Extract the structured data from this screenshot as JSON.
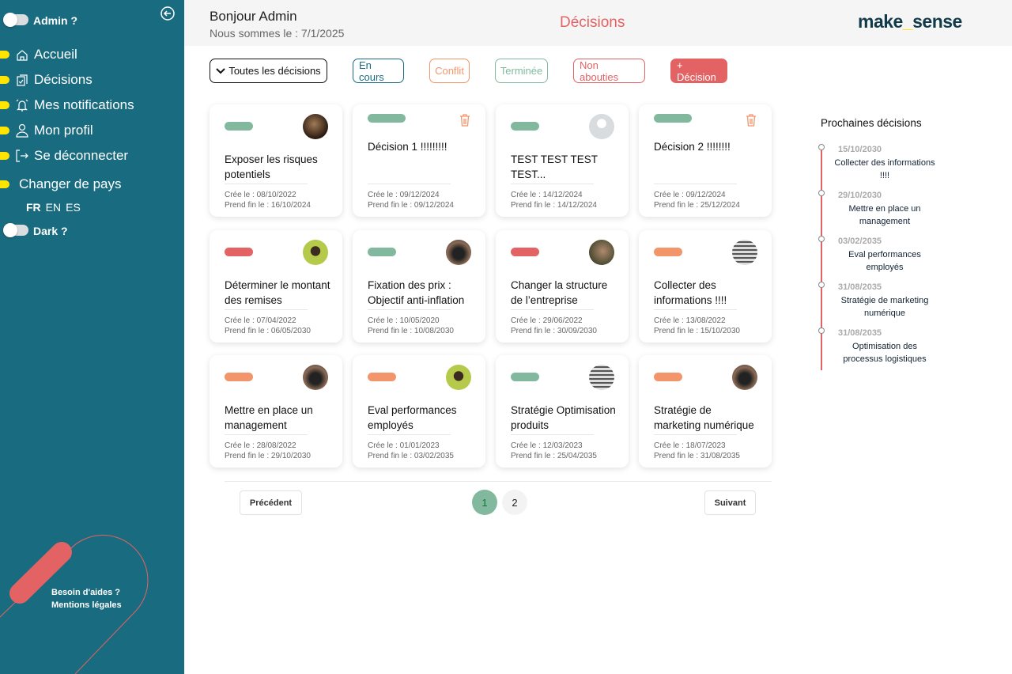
{
  "colors": {
    "sidebar": "#196b80",
    "accent_yellow": "#ffe500",
    "green": "#82b99e",
    "red": "#e36264",
    "orange": "#f2956a",
    "blue": "#196b80"
  },
  "sidebar": {
    "admin_toggle": "Admin ?",
    "items": [
      {
        "label": "Accueil",
        "icon": "home-icon"
      },
      {
        "label": "Décisions",
        "icon": "clipboard-check-icon"
      },
      {
        "label": "Mes notifications",
        "icon": "bell-icon"
      },
      {
        "label": "Mon profil",
        "icon": "user-icon"
      },
      {
        "label": "Se déconnecter",
        "icon": "logout-icon"
      }
    ],
    "country": "Changer de pays",
    "languages": [
      "FR",
      "EN",
      "ES"
    ],
    "dark_toggle": "Dark ?",
    "help": "Besoin d'aides ?",
    "legal": "Mentions légales"
  },
  "header": {
    "greeting": "Bonjour Admin",
    "date": "Nous sommes le : 7/1/2025",
    "title": "Décisions",
    "logo_a": "make",
    "logo_b": "_",
    "logo_c": "sense"
  },
  "filters": {
    "all": "Toutes les décisions",
    "ongoing": "En cours",
    "conflict": "Conflit",
    "done": "Terminée",
    "failed": "Non abouties",
    "add": "+ Décision"
  },
  "cards": [
    {
      "title": "Exposer les risques potentiels",
      "created": "Crée le : 08/10/2022",
      "end": "Prend fin le : 16/10/2024",
      "status": "green",
      "avatar": "photo"
    },
    {
      "title": "Décision 1 !!!!!!!!!",
      "created": "Crée le : 09/12/2024",
      "end": "Prend fin le : 09/12/2024",
      "status": "green",
      "avatar": "trash"
    },
    {
      "title": "TEST TEST TEST TEST...",
      "created": "Crée le : 14/12/2024",
      "end": "Prend fin le : 14/12/2024",
      "status": "green",
      "avatar": "default"
    },
    {
      "title": "Décision 2 !!!!!!!!",
      "created": "Crée le : 09/12/2024",
      "end": "Prend fin le : 25/12/2024",
      "status": "green",
      "avatar": "trash"
    },
    {
      "title": "Déterminer le montant des remises",
      "created": "Crée le : 07/04/2022",
      "end": "Prend fin le : 06/05/2030",
      "status": "red",
      "avatar": "illustration"
    },
    {
      "title": "Fixation des prix : Objectif anti-inflation",
      "created": "Crée le : 10/05/2020",
      "end": "Prend fin le : 10/08/2030",
      "status": "green",
      "avatar": "camera"
    },
    {
      "title": "Changer la structure de l’entreprise",
      "created": "Crée le : 29/06/2022",
      "end": "Prend fin le : 30/09/2030",
      "status": "red",
      "avatar": "woman"
    },
    {
      "title": "Collecter des informations !!!!",
      "created": "Crée le : 13/08/2022",
      "end": "Prend fin le : 15/10/2030",
      "status": "orange",
      "avatar": "bw"
    },
    {
      "title": "Mettre en place un management",
      "created": "Crée le : 28/08/2022",
      "end": "Prend fin le : 29/10/2030",
      "status": "orange",
      "avatar": "camera"
    },
    {
      "title": "Eval performances employés",
      "created": "Crée le : 01/01/2023",
      "end": "Prend fin le : 03/02/2035",
      "status": "orange",
      "avatar": "illustration"
    },
    {
      "title": "Stratégie Optimisation produits",
      "created": "Crée le : 12/03/2023",
      "end": "Prend fin le : 25/04/2035",
      "status": "green",
      "avatar": "bw"
    },
    {
      "title": "Stratégie de marketing numérique",
      "created": "Crée le : 18/07/2023",
      "end": "Prend fin le : 31/08/2035",
      "status": "orange",
      "avatar": "camera"
    }
  ],
  "timeline": {
    "title": "Prochaines décisions",
    "items": [
      {
        "date": "15/10/2030",
        "name": "Collecter des informations !!!!"
      },
      {
        "date": "29/10/2030",
        "name": "Mettre en place un management"
      },
      {
        "date": "03/02/2035",
        "name": "Eval performances employés"
      },
      {
        "date": "31/08/2035",
        "name": "Stratégie de marketing numérique"
      },
      {
        "date": "31/08/2035",
        "name": "Optimisation des processus logistiques"
      }
    ]
  },
  "pagination": {
    "prev": "Précédent",
    "next": "Suivant",
    "pages": [
      "1",
      "2"
    ],
    "current": "1"
  }
}
